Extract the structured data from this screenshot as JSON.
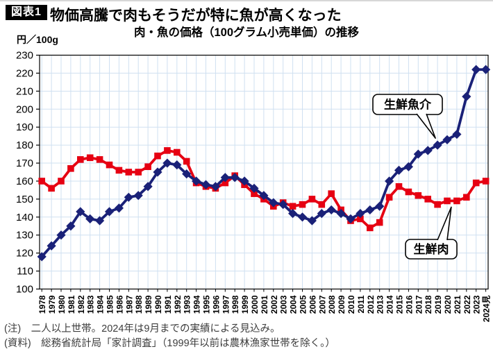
{
  "header": {
    "tag": "図表1",
    "title": "物価高騰で肉もそうだが特に魚が高くなった"
  },
  "chart_data": {
    "type": "line",
    "title": "肉・魚の価格（100グラム小売単価）の推移",
    "unit_label": "円／100g",
    "ylim": [
      100,
      230
    ],
    "ytick_step": 10,
    "grid": true,
    "legend_position": "callouts-on-chart",
    "x": [
      "1978",
      "1979",
      "1980",
      "1981",
      "1982",
      "1983",
      "1984",
      "1985",
      "1986",
      "1987",
      "1988",
      "1989",
      "1990",
      "1991",
      "1992",
      "1993",
      "1994",
      "1995",
      "1996",
      "1997",
      "1998",
      "1999",
      "2000",
      "2001",
      "2002",
      "2003",
      "2004",
      "2005",
      "2006",
      "2007",
      "2008",
      "2009",
      "2010",
      "2011",
      "2012",
      "2013",
      "2014",
      "2015",
      "2016",
      "2017",
      "2018",
      "2019",
      "2020",
      "2021",
      "2022",
      "2023",
      "2024見"
    ],
    "series": [
      {
        "name": "生鮮肉",
        "marker": "square",
        "color": "#e60012",
        "values": [
          160,
          156,
          160,
          167,
          172,
          173,
          172,
          169,
          166,
          165,
          165,
          168,
          174,
          177,
          176,
          171,
          159,
          157,
          156,
          159,
          163,
          158,
          153,
          150,
          146,
          148,
          146,
          147,
          150,
          147,
          153,
          144,
          138,
          139,
          134,
          137,
          151,
          157,
          154,
          152,
          150,
          147,
          149,
          149,
          151,
          159,
          160
        ]
      },
      {
        "name": "生鮮魚介",
        "marker": "diamond",
        "color": "#1a2178",
        "values": [
          118,
          124,
          130,
          135,
          143,
          139,
          138,
          143,
          145,
          151,
          152,
          157,
          165,
          170,
          169,
          164,
          160,
          158,
          157,
          162,
          162,
          160,
          156,
          152,
          148,
          147,
          142,
          140,
          138,
          142,
          144,
          142,
          139,
          142,
          144,
          146,
          160,
          166,
          168,
          175,
          177,
          180,
          183,
          186,
          207,
          222,
          222
        ]
      }
    ],
    "callouts": [
      {
        "text": "生鮮魚介",
        "anchor_year": "2019",
        "series": "生鮮魚介"
      },
      {
        "text": "生鮮肉",
        "anchor_year": "2021",
        "series": "生鮮肉"
      }
    ],
    "colors": {
      "grid": "#cfe0f1",
      "axis": "#000000"
    }
  },
  "footer": {
    "note": "(注)　二人以上世帯。2024年は9月までの実績による見込み。",
    "source": "(資料)　総務省統計局「家計調査」（1999年以前は農林漁家世帯を除く。）"
  }
}
